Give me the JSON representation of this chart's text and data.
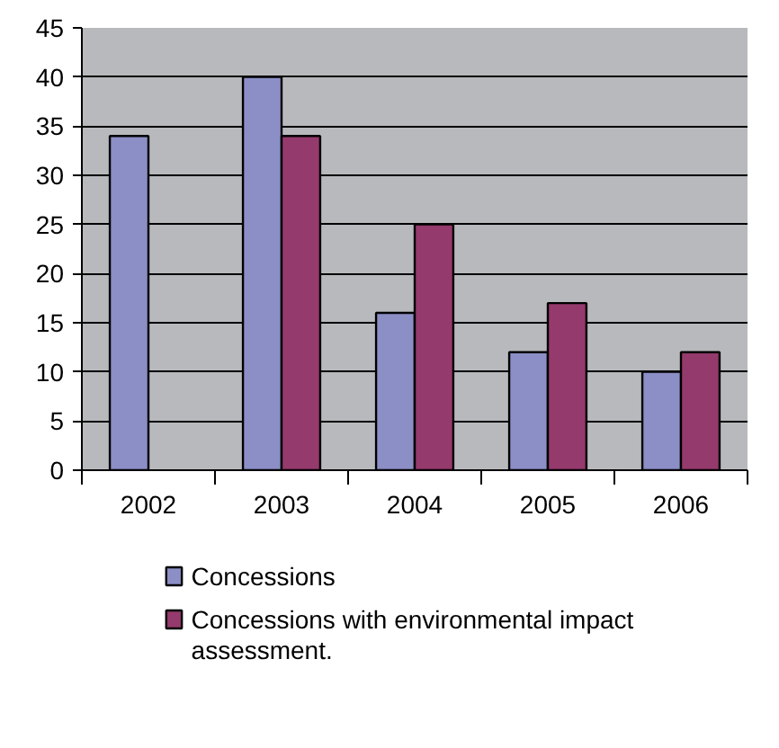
{
  "chart_data": {
    "type": "bar",
    "categories": [
      "2002",
      "2003",
      "2004",
      "2005",
      "2006"
    ],
    "series": [
      {
        "name": "Concessions",
        "color": "#8c8fc6",
        "values": [
          34,
          40,
          16,
          12,
          10
        ]
      },
      {
        "name": "Concessions with environmental impact assessment.",
        "color": "#953a6c",
        "values": [
          null,
          34,
          25,
          17,
          12
        ]
      }
    ],
    "ylim": [
      0,
      45
    ],
    "yticks": [
      0,
      5,
      10,
      15,
      20,
      25,
      30,
      35,
      40,
      45
    ],
    "grid": "y",
    "legend": "bottom"
  }
}
